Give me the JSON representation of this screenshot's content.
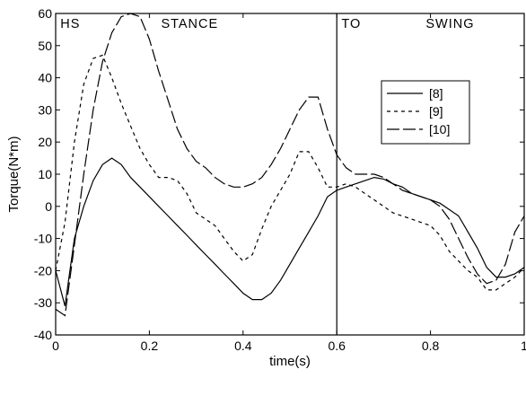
{
  "chart_data": {
    "type": "line",
    "xlabel": "time(s)",
    "ylabel": "Torque(N*m)",
    "xlim": [
      0,
      1
    ],
    "ylim": [
      -40,
      60
    ],
    "xticks": [
      0,
      0.2,
      0.4,
      0.6,
      0.8,
      1
    ],
    "xtick_labels": [
      "0",
      "0.2",
      "0.4",
      "0.6",
      "0.8",
      "1"
    ],
    "yticks": [
      -40,
      -30,
      -20,
      -10,
      0,
      10,
      20,
      30,
      40,
      50,
      60
    ],
    "ytick_labels": [
      "-40",
      "-30",
      "-20",
      "-10",
      "0",
      "10",
      "20",
      "30",
      "40",
      "50",
      "60"
    ],
    "grid": false,
    "legend_position": "upper-right",
    "divider_x": 0.6,
    "annotations": [
      {
        "text": "HS",
        "x": 0.01,
        "y": 55.5
      },
      {
        "text": "STANCE",
        "x": 0.225,
        "y": 55.5
      },
      {
        "text": "TO",
        "x": 0.61,
        "y": 55.5
      },
      {
        "text": "SWING",
        "x": 0.79,
        "y": 55.5
      }
    ],
    "series": [
      {
        "name": "[8]",
        "dash": "",
        "x": [
          0,
          0.02,
          0.04,
          0.06,
          0.08,
          0.1,
          0.12,
          0.14,
          0.16,
          0.18,
          0.2,
          0.22,
          0.24,
          0.26,
          0.28,
          0.3,
          0.32,
          0.34,
          0.36,
          0.38,
          0.4,
          0.42,
          0.44,
          0.46,
          0.48,
          0.5,
          0.52,
          0.54,
          0.56,
          0.58,
          0.6,
          0.62,
          0.64,
          0.66,
          0.68,
          0.7,
          0.72,
          0.74,
          0.76,
          0.78,
          0.8,
          0.82,
          0.84,
          0.86,
          0.88,
          0.9,
          0.92,
          0.94,
          0.96,
          0.98,
          1.0
        ],
        "y": [
          -20,
          -31,
          -10,
          0,
          8,
          13,
          15,
          13,
          9,
          6,
          3,
          0,
          -3,
          -6,
          -9,
          -12,
          -15,
          -18,
          -21,
          -24,
          -27,
          -29,
          -29,
          -27,
          -23,
          -18,
          -13,
          -8,
          -3,
          3,
          5,
          6,
          7,
          8,
          9,
          8.5,
          7,
          6,
          4,
          3,
          2,
          1,
          -1,
          -3,
          -8,
          -13,
          -19,
          -22,
          -22,
          -21,
          -19
        ]
      },
      {
        "name": "[9]",
        "dash": "4,4",
        "x": [
          0,
          0.02,
          0.04,
          0.06,
          0.08,
          0.1,
          0.12,
          0.14,
          0.16,
          0.18,
          0.2,
          0.22,
          0.24,
          0.26,
          0.28,
          0.3,
          0.32,
          0.34,
          0.36,
          0.38,
          0.4,
          0.42,
          0.44,
          0.46,
          0.48,
          0.5,
          0.52,
          0.54,
          0.56,
          0.58,
          0.6,
          0.62,
          0.64,
          0.66,
          0.68,
          0.7,
          0.72,
          0.74,
          0.76,
          0.78,
          0.8,
          0.82,
          0.84,
          0.86,
          0.88,
          0.9,
          0.92,
          0.94,
          0.96,
          0.98,
          1.0
        ],
        "y": [
          -20,
          -5,
          20,
          38,
          46,
          47,
          40,
          32,
          25,
          18,
          13,
          9,
          9,
          8,
          4,
          -2,
          -4,
          -6,
          -10,
          -14,
          -17,
          -15,
          -7,
          0,
          5,
          10,
          17,
          17,
          12,
          6,
          6,
          7,
          6,
          4,
          2,
          0,
          -2,
          -3,
          -4,
          -5,
          -6,
          -9,
          -14,
          -17,
          -20,
          -22,
          -26,
          -26,
          -24,
          -22,
          -19
        ]
      },
      {
        "name": "[10]",
        "dash": "14,4",
        "x": [
          0,
          0.02,
          0.04,
          0.06,
          0.08,
          0.1,
          0.12,
          0.14,
          0.16,
          0.18,
          0.2,
          0.22,
          0.24,
          0.26,
          0.28,
          0.3,
          0.32,
          0.34,
          0.36,
          0.38,
          0.4,
          0.42,
          0.44,
          0.46,
          0.48,
          0.5,
          0.52,
          0.54,
          0.56,
          0.58,
          0.6,
          0.62,
          0.64,
          0.66,
          0.68,
          0.7,
          0.72,
          0.74,
          0.76,
          0.78,
          0.8,
          0.82,
          0.84,
          0.86,
          0.88,
          0.9,
          0.92,
          0.94,
          0.96,
          0.98,
          1.0
        ],
        "y": [
          -32,
          -34,
          -12,
          10,
          30,
          45,
          54,
          59,
          60,
          59,
          52,
          42,
          33,
          24,
          18,
          14,
          12,
          9,
          7,
          6,
          6,
          7,
          9,
          13,
          18,
          24,
          30,
          34,
          34,
          24,
          16,
          12,
          10,
          10,
          10,
          9,
          7,
          5,
          4,
          3,
          2,
          0,
          -4,
          -10,
          -16,
          -21,
          -24,
          -23,
          -18,
          -8,
          -3
        ]
      }
    ]
  }
}
